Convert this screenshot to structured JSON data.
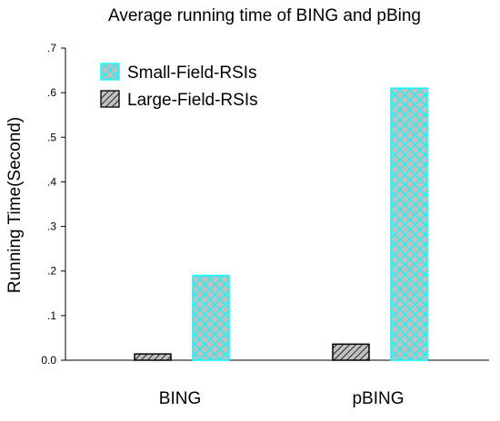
{
  "chart_data": {
    "type": "bar",
    "title": "Average running time of BING and pBing",
    "xlabel": "",
    "ylabel": "Running Time(Second)",
    "categories": [
      "BING",
      "pBING"
    ],
    "series": [
      {
        "name": "Large-Field-RSIs",
        "values": [
          0.014,
          0.036
        ],
        "color": "#000000",
        "fill": "#c0c0c0",
        "pattern": "diagonal-hatch"
      },
      {
        "name": "Small-Field-RSIs",
        "values": [
          0.19,
          0.61
        ],
        "color": "#00ffff",
        "fill": "#c0c0c0",
        "pattern": "crosshatch"
      }
    ],
    "ylim": [
      0,
      0.7
    ],
    "yticks": [
      0,
      0.1,
      0.2,
      0.3,
      0.4,
      0.5,
      0.6,
      0.7
    ],
    "ytick_labels": [
      "0.0",
      ".1",
      ".2",
      ".3",
      ".4",
      ".5",
      ".6",
      ".7"
    ],
    "grid": false,
    "legend_position": "top-left"
  }
}
